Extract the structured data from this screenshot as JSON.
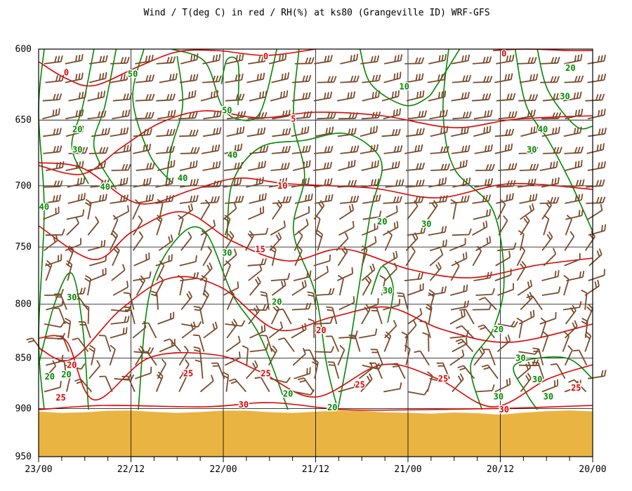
{
  "chart_data": {
    "type": "line",
    "title": "Wind / T(deg C) in red / RH(%) at ks80 (Grangeville ID)  WRF-GFS",
    "y_axis": {
      "scale": "pressure (log)",
      "ylim": [
        600,
        950
      ],
      "inverted": true,
      "ticks": [
        600,
        650,
        700,
        750,
        800,
        850,
        900,
        950
      ],
      "tick_labels": [
        "600",
        "650",
        "700",
        "750",
        "800",
        "850",
        "900",
        "950"
      ]
    },
    "x_axis": {
      "order": "time decreasing left to right",
      "tick_labels": [
        "23/00",
        "22/12",
        "22/00",
        "21/12",
        "21/00",
        "20/12",
        "20/00"
      ],
      "minor_ticks_per_major": 4
    },
    "grid": true,
    "colors": {
      "temperature": "#e00000",
      "rh": "#008800",
      "wind": "#7a4a2a",
      "ground": "#eab443",
      "axis": "#000000"
    },
    "ground_pressure_hpa": 903,
    "series": [
      {
        "name": "T(deg C)",
        "kind": "temperature contours",
        "labels": [
          {
            "text": "0",
            "x": 0.05,
            "p": 616
          },
          {
            "text": "0",
            "x": 0.41,
            "p": 605
          },
          {
            "text": "0",
            "x": 0.84,
            "p": 603
          },
          {
            "text": "5",
            "x": 0.46,
            "p": 649
          },
          {
            "text": "10",
            "x": 0.44,
            "p": 700
          },
          {
            "text": "15",
            "x": 0.4,
            "p": 752
          },
          {
            "text": "20",
            "x": 0.51,
            "p": 824
          },
          {
            "text": "20",
            "x": 0.06,
            "p": 857
          },
          {
            "text": "25",
            "x": 0.27,
            "p": 865
          },
          {
            "text": "25",
            "x": 0.41,
            "p": 865
          },
          {
            "text": "25",
            "x": 0.58,
            "p": 876
          },
          {
            "text": "25",
            "x": 0.73,
            "p": 870
          },
          {
            "text": "25",
            "x": 0.97,
            "p": 879
          },
          {
            "text": "25",
            "x": 0.04,
            "p": 889
          },
          {
            "text": "30",
            "x": 0.37,
            "p": 896
          },
          {
            "text": "30",
            "x": 0.84,
            "p": 901
          }
        ]
      },
      {
        "name": "RH(%)",
        "kind": "relative humidity contours",
        "labels": [
          {
            "text": "50",
            "x": 0.17,
            "p": 617
          },
          {
            "text": "50",
            "x": 0.34,
            "p": 643
          },
          {
            "text": "10",
            "x": 0.66,
            "p": 626
          },
          {
            "text": "20",
            "x": 0.96,
            "p": 613
          },
          {
            "text": "30",
            "x": 0.95,
            "p": 633
          },
          {
            "text": "20",
            "x": 0.07,
            "p": 657
          },
          {
            "text": "30",
            "x": 0.07,
            "p": 672
          },
          {
            "text": "40",
            "x": 0.91,
            "p": 657
          },
          {
            "text": "30",
            "x": 0.89,
            "p": 672
          },
          {
            "text": "40",
            "x": 0.35,
            "p": 676
          },
          {
            "text": "40",
            "x": 0.26,
            "p": 694
          },
          {
            "text": "40",
            "x": 0.12,
            "p": 701
          },
          {
            "text": "40",
            "x": 0.01,
            "p": 717
          },
          {
            "text": "20",
            "x": 0.62,
            "p": 729
          },
          {
            "text": "30",
            "x": 0.7,
            "p": 731
          },
          {
            "text": "30",
            "x": 0.34,
            "p": 755
          },
          {
            "text": "30",
            "x": 0.06,
            "p": 794
          },
          {
            "text": "30",
            "x": 0.63,
            "p": 788
          },
          {
            "text": "20",
            "x": 0.43,
            "p": 798
          },
          {
            "text": "20",
            "x": 0.83,
            "p": 823
          },
          {
            "text": "30",
            "x": 0.87,
            "p": 850
          },
          {
            "text": "30",
            "x": 0.9,
            "p": 871
          },
          {
            "text": "20",
            "x": 0.02,
            "p": 868
          },
          {
            "text": "20",
            "x": 0.05,
            "p": 866
          },
          {
            "text": "20",
            "x": 0.45,
            "p": 885
          },
          {
            "text": "20",
            "x": 0.53,
            "p": 899
          },
          {
            "text": "30",
            "x": 0.83,
            "p": 888
          },
          {
            "text": "30",
            "x": 0.92,
            "p": 888
          }
        ]
      },
      {
        "name": "Wind",
        "kind": "wind barbs"
      }
    ]
  }
}
